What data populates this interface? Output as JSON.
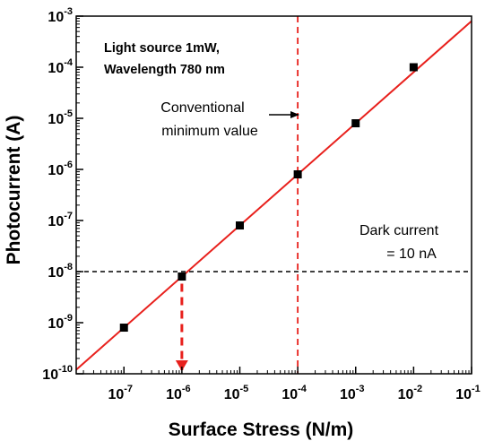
{
  "chart_data": {
    "type": "scatter",
    "xlabel": "Surface Stress (N/m)",
    "ylabel": "Photocurrent (A)",
    "x_scale": "log",
    "y_scale": "log",
    "xlim": [
      1.5e-08,
      0.1
    ],
    "ylim": [
      1e-10,
      0.001
    ],
    "x_ticks": [
      {
        "value": 1e-07,
        "base": "10",
        "exp": "-7"
      },
      {
        "value": 1e-06,
        "base": "10",
        "exp": "-6"
      },
      {
        "value": 1e-05,
        "base": "10",
        "exp": "-5"
      },
      {
        "value": 0.0001,
        "base": "10",
        "exp": "-4"
      },
      {
        "value": 0.001,
        "base": "10",
        "exp": "-3"
      },
      {
        "value": 0.01,
        "base": "10",
        "exp": "-2"
      },
      {
        "value": 0.1,
        "base": "10",
        "exp": "-1"
      }
    ],
    "y_ticks": [
      {
        "value": 1e-10,
        "base": "10",
        "exp": "-10"
      },
      {
        "value": 1e-09,
        "base": "10",
        "exp": "-9"
      },
      {
        "value": 1e-08,
        "base": "10",
        "exp": "-8"
      },
      {
        "value": 1e-07,
        "base": "10",
        "exp": "-7"
      },
      {
        "value": 1e-06,
        "base": "10",
        "exp": "-6"
      },
      {
        "value": 1e-05,
        "base": "10",
        "exp": "-5"
      },
      {
        "value": 0.0001,
        "base": "10",
        "exp": "-4"
      },
      {
        "value": 0.001,
        "base": "10",
        "exp": "-3"
      }
    ],
    "points": [
      {
        "x": 1e-07,
        "y": 8e-10
      },
      {
        "x": 1e-06,
        "y": 8e-09
      },
      {
        "x": 1e-05,
        "y": 8e-08
      },
      {
        "x": 0.0001,
        "y": 8e-07
      },
      {
        "x": 0.001,
        "y": 8e-06
      },
      {
        "x": 0.01,
        "y": 0.0001
      }
    ],
    "fit_line": {
      "color": "#e8201c",
      "x_start": 1.5e-08,
      "x_end": 0.1,
      "slope": 1,
      "intercept_y_at_x1": 0.008
    },
    "dark_current": {
      "y": 1e-08,
      "color": "#000000",
      "dash": true
    },
    "conventional_minimum": {
      "x": 0.0001,
      "color": "#e8201c",
      "dash": true
    },
    "detection_arrow": {
      "x": 1e-06,
      "y_from": 8e-09,
      "color": "#e8201c"
    },
    "marker_color": "#000000",
    "annotations": {
      "light_source_line1": "Light source 1mW,",
      "light_source_line2": "Wavelength 780 nm",
      "conventional_line1": "Conventional",
      "conventional_line2": "minimum value",
      "dark_line1": "Dark current",
      "dark_line2": "= 10 nA"
    }
  }
}
